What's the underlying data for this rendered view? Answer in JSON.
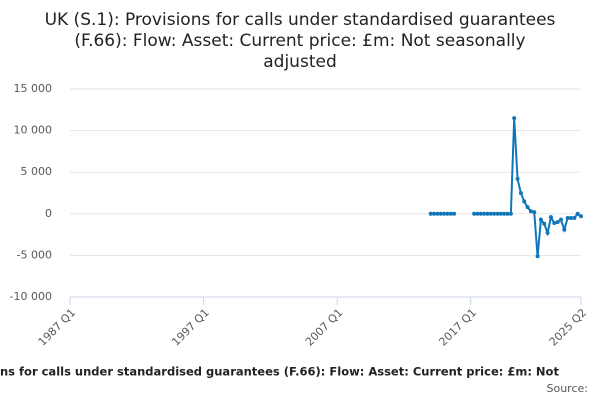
{
  "chart_data": {
    "type": "line",
    "title": [
      "UK (S.1): Provisions for calls under standardised guarantees",
      "(F.66): Flow: Asset: Current price: £m: Not seasonally",
      "adjusted"
    ],
    "caption": "ns for calls under standardised guarantees (F.66): Flow: Asset: Current price: £m: Not",
    "source": "Source:",
    "color": "#0f76b8",
    "grid": true,
    "ylim": [
      -10000,
      15000
    ],
    "yticks": [
      {
        "value": -10000,
        "label": "-10 000"
      },
      {
        "value": -5000,
        "label": "-5 000"
      },
      0,
      {
        "value": 5000,
        "label": "5 000"
      },
      {
        "value": 10000,
        "label": "10 000"
      },
      {
        "value": 15000,
        "label": "15 000"
      }
    ],
    "categories": [
      "1987 Q1",
      null,
      null,
      null,
      null,
      null,
      null,
      null,
      null,
      null,
      null,
      null,
      null,
      null,
      null,
      null,
      null,
      null,
      null,
      null,
      null,
      null,
      null,
      null,
      null,
      null,
      null,
      null,
      null,
      null,
      null,
      null,
      null,
      null,
      null,
      null,
      null,
      null,
      null,
      null,
      "1997 Q1",
      null,
      null,
      null,
      null,
      null,
      null,
      null,
      null,
      null,
      null,
      null,
      null,
      null,
      null,
      null,
      null,
      null,
      null,
      null,
      null,
      null,
      null,
      null,
      null,
      null,
      null,
      null,
      null,
      null,
      null,
      null,
      null,
      null,
      null,
      null,
      null,
      null,
      null,
      null,
      "2007 Q1",
      null,
      null,
      null,
      null,
      null,
      null,
      null,
      null,
      null,
      null,
      null,
      null,
      null,
      null,
      null,
      null,
      null,
      null,
      null,
      null,
      null,
      null,
      null,
      null,
      null,
      null,
      null,
      null,
      null,
      null,
      null,
      null,
      null,
      null,
      null,
      null,
      null,
      null,
      null,
      "2017 Q1",
      null,
      null,
      null,
      null,
      null,
      null,
      null,
      null,
      null,
      null,
      null,
      null,
      null,
      null,
      null,
      null,
      null,
      null,
      null,
      null,
      null,
      null,
      null,
      null,
      null,
      null,
      null,
      null,
      null,
      null,
      null,
      null,
      "2025 Q2"
    ],
    "values": [
      null,
      null,
      null,
      null,
      null,
      null,
      null,
      null,
      null,
      null,
      null,
      null,
      null,
      null,
      null,
      null,
      null,
      null,
      null,
      null,
      null,
      null,
      null,
      null,
      null,
      null,
      null,
      null,
      null,
      null,
      null,
      null,
      null,
      null,
      null,
      null,
      null,
      null,
      null,
      null,
      null,
      null,
      null,
      null,
      null,
      null,
      null,
      null,
      null,
      null,
      null,
      null,
      null,
      null,
      null,
      null,
      null,
      null,
      null,
      null,
      null,
      null,
      null,
      null,
      null,
      null,
      null,
      null,
      null,
      null,
      null,
      null,
      null,
      null,
      null,
      null,
      null,
      null,
      null,
      null,
      null,
      null,
      null,
      null,
      null,
      null,
      null,
      null,
      null,
      null,
      null,
      null,
      null,
      null,
      null,
      null,
      null,
      null,
      null,
      null,
      null,
      null,
      null,
      null,
      null,
      null,
      null,
      null,
      0,
      0,
      0,
      0,
      0,
      0,
      0,
      0,
      null,
      null,
      null,
      null,
      null,
      0,
      0,
      0,
      0,
      0,
      0,
      0,
      0,
      0,
      0,
      0,
      0,
      11500,
      4200,
      2500,
      1500,
      800,
      300,
      200,
      -5100,
      -700,
      -1200,
      -2300,
      -400,
      -1100,
      -1000,
      -700,
      -1900,
      -500,
      -500,
      -500,
      0,
      -300
    ]
  }
}
